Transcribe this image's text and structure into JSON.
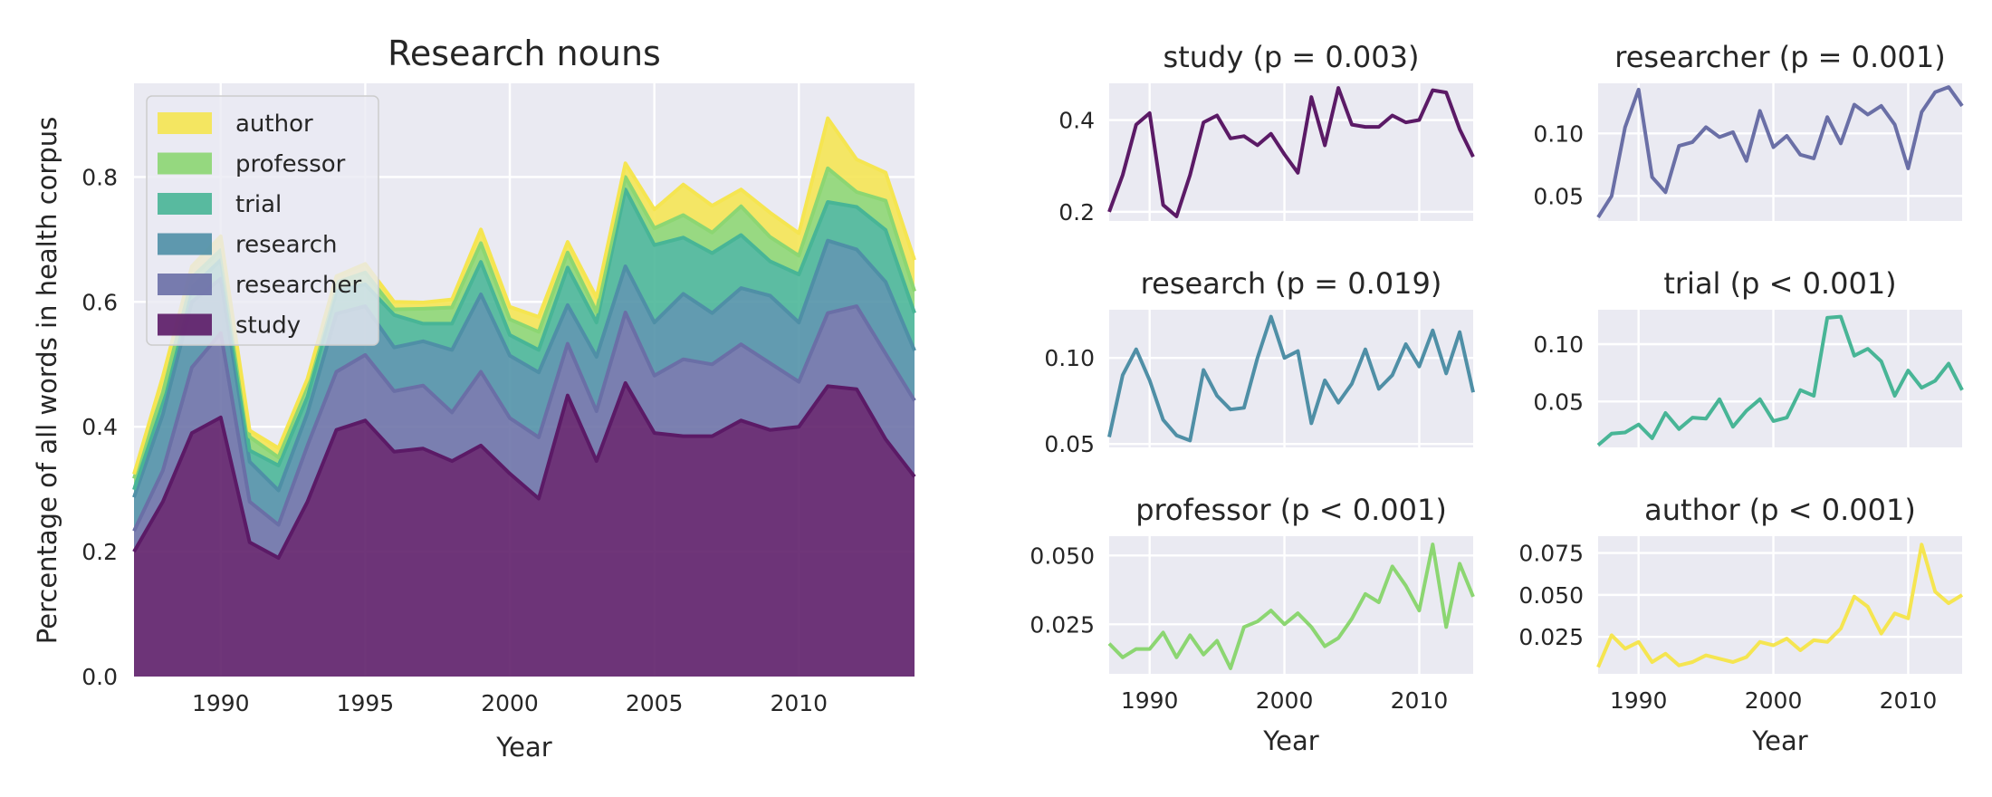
{
  "chart_data": [
    {
      "type": "area",
      "stacked": true,
      "title": "Research nouns",
      "xlabel": "Year",
      "ylabel": "Percentage of all words in health corpus",
      "xlim": [
        1987,
        2014
      ],
      "ylim": [
        0,
        0.95
      ],
      "xticks": [
        "1990",
        "1995",
        "2000",
        "2005",
        "2010"
      ],
      "yticks": [
        "0.0",
        "0.2",
        "0.4",
        "0.6",
        "0.8"
      ],
      "grid": true,
      "legend": "top-left",
      "legend_order": [
        "author",
        "professor",
        "trial",
        "research",
        "researcher",
        "study"
      ]
    },
    {
      "type": "line",
      "title": "study (p = 0.003)",
      "series_key": "study",
      "ylim": [
        0.18,
        0.48
      ],
      "yticks": [
        0.2,
        0.4
      ],
      "ytick_labels": [
        "0.2",
        "0.4"
      ],
      "xticks": [
        "1990",
        "2000",
        "2010"
      ],
      "xlabel": ""
    },
    {
      "type": "line",
      "title": "researcher (p = 0.001)",
      "series_key": "researcher",
      "ylim": [
        0.03,
        0.14
      ],
      "yticks": [
        0.05,
        0.1
      ],
      "ytick_labels": [
        "0.05",
        "0.10"
      ],
      "xticks": [
        "1990",
        "2000",
        "2010"
      ],
      "xlabel": ""
    },
    {
      "type": "line",
      "title": "research (p = 0.019)",
      "series_key": "research",
      "ylim": [
        0.048,
        0.128
      ],
      "yticks": [
        0.05,
        0.1
      ],
      "ytick_labels": [
        "0.05",
        "0.10"
      ],
      "xticks": [
        "1990",
        "2000",
        "2010"
      ],
      "xlabel": ""
    },
    {
      "type": "line",
      "title": "trial (p < 0.001)",
      "series_key": "trial",
      "ylim": [
        0.01,
        0.13
      ],
      "yticks": [
        0.05,
        0.1
      ],
      "ytick_labels": [
        "0.05",
        "0.10"
      ],
      "xticks": [
        "1990",
        "2000",
        "2010"
      ],
      "xlabel": ""
    },
    {
      "type": "line",
      "title": "professor (p < 0.001)",
      "series_key": "professor",
      "ylim": [
        0.007,
        0.057
      ],
      "yticks": [
        0.025,
        0.05
      ],
      "ytick_labels": [
        "0.025",
        "0.050"
      ],
      "xticks": [
        "1990",
        "2000",
        "2010"
      ],
      "xlabel": "Year"
    },
    {
      "type": "line",
      "title": "author (p < 0.001)",
      "series_key": "author",
      "ylim": [
        0.003,
        0.085
      ],
      "yticks": [
        0.025,
        0.05,
        0.075
      ],
      "ytick_labels": [
        "0.025",
        "0.050",
        "0.075"
      ],
      "xticks": [
        "1990",
        "2000",
        "2010"
      ],
      "xlabel": "Year"
    }
  ],
  "years": [
    1987,
    1988,
    1989,
    1990,
    1991,
    1992,
    1993,
    1994,
    1995,
    1996,
    1997,
    1998,
    1999,
    2000,
    2001,
    2002,
    2003,
    2004,
    2005,
    2006,
    2007,
    2008,
    2009,
    2010,
    2011,
    2012,
    2013,
    2014
  ],
  "series": [
    {
      "name": "study",
      "color": "#5b1a66",
      "values": [
        0.2,
        0.28,
        0.39,
        0.415,
        0.215,
        0.19,
        0.28,
        0.395,
        0.41,
        0.36,
        0.365,
        0.345,
        0.37,
        0.325,
        0.285,
        0.45,
        0.345,
        0.47,
        0.39,
        0.385,
        0.385,
        0.41,
        0.395,
        0.4,
        0.465,
        0.46,
        0.38,
        0.32
      ]
    },
    {
      "name": "researcher",
      "color": "#6a6fa6",
      "values": [
        0.033,
        0.05,
        0.105,
        0.135,
        0.065,
        0.053,
        0.09,
        0.093,
        0.105,
        0.097,
        0.101,
        0.078,
        0.118,
        0.089,
        0.098,
        0.083,
        0.08,
        0.113,
        0.092,
        0.123,
        0.115,
        0.122,
        0.107,
        0.072,
        0.117,
        0.133,
        0.137,
        0.122
      ]
    },
    {
      "name": "research",
      "color": "#4f8fa6",
      "values": [
        0.054,
        0.09,
        0.105,
        0.087,
        0.064,
        0.055,
        0.052,
        0.093,
        0.078,
        0.07,
        0.071,
        0.1,
        0.124,
        0.1,
        0.104,
        0.062,
        0.087,
        0.074,
        0.085,
        0.105,
        0.082,
        0.09,
        0.108,
        0.095,
        0.116,
        0.091,
        0.115,
        0.08
      ]
    },
    {
      "name": "trial",
      "color": "#48b596",
      "values": [
        0.012,
        0.022,
        0.023,
        0.03,
        0.018,
        0.04,
        0.026,
        0.036,
        0.035,
        0.052,
        0.028,
        0.042,
        0.052,
        0.033,
        0.036,
        0.06,
        0.055,
        0.123,
        0.124,
        0.09,
        0.096,
        0.085,
        0.055,
        0.077,
        0.062,
        0.068,
        0.083,
        0.06
      ]
    },
    {
      "name": "professor",
      "color": "#8cd672",
      "values": [
        0.018,
        0.013,
        0.016,
        0.016,
        0.022,
        0.013,
        0.021,
        0.014,
        0.019,
        0.009,
        0.024,
        0.026,
        0.03,
        0.025,
        0.029,
        0.024,
        0.017,
        0.02,
        0.027,
        0.036,
        0.033,
        0.046,
        0.039,
        0.03,
        0.054,
        0.024,
        0.047,
        0.035
      ]
    },
    {
      "name": "author",
      "color": "#f5e551",
      "values": [
        0.007,
        0.026,
        0.018,
        0.022,
        0.01,
        0.015,
        0.008,
        0.01,
        0.014,
        0.012,
        0.01,
        0.013,
        0.022,
        0.02,
        0.024,
        0.017,
        0.023,
        0.022,
        0.03,
        0.049,
        0.043,
        0.027,
        0.039,
        0.036,
        0.08,
        0.052,
        0.045,
        0.05
      ]
    }
  ]
}
